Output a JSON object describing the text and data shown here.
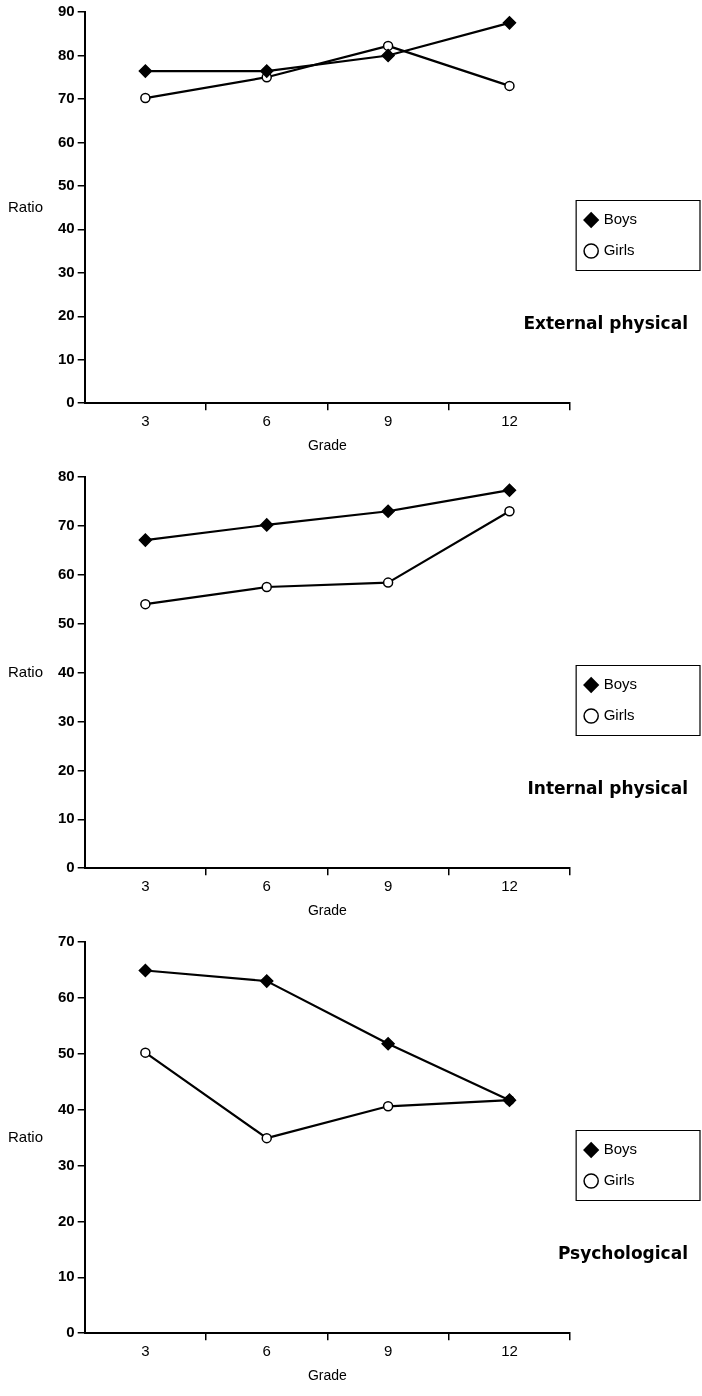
{
  "chart_data": [
    {
      "type": "line",
      "xlabel": "Grade",
      "ylabel": "Ratio",
      "x": [
        3,
        6,
        9,
        12
      ],
      "xlim": [
        1.5,
        13.5
      ],
      "xticks": [
        3,
        {
          "value": 4.5,
          "label": null
        },
        6,
        {
          "value": 7.5,
          "label": null
        },
        9,
        {
          "value": 10.5,
          "label": null
        },
        12,
        {
          "value": 13.5,
          "label": null
        }
      ],
      "ylim": [
        0,
        90
      ],
      "yticks": [
        0,
        10,
        20,
        30,
        40,
        50,
        60,
        70,
        80,
        90
      ],
      "grid": false,
      "legend": "right",
      "annotations": [
        "External physical"
      ],
      "series": [
        {
          "name": "Boys",
          "color": "#000000",
          "marker": "diamond",
          "values": [
            76.4,
            76.4,
            80,
            87.5
          ]
        },
        {
          "name": "Girls",
          "color": "#000000",
          "marker": "circle",
          "values": [
            70.2,
            75,
            82.2,
            73
          ]
        }
      ]
    },
    {
      "type": "line",
      "xlabel": "Grade",
      "ylabel": "Ratio",
      "x": [
        3,
        6,
        9,
        12
      ],
      "xlim": [
        1.5,
        13.5
      ],
      "xticks": [
        3,
        {
          "value": 4.5,
          "label": null
        },
        6,
        {
          "value": 7.5,
          "label": null
        },
        9,
        {
          "value": 10.5,
          "label": null
        },
        12,
        {
          "value": 13.5,
          "label": null
        }
      ],
      "ylim": [
        0,
        80
      ],
      "yticks": [
        0,
        10,
        20,
        30,
        40,
        50,
        60,
        70,
        80
      ],
      "grid": false,
      "legend": "right",
      "annotations": [
        "Internal physical"
      ],
      "series": [
        {
          "name": "Boys",
          "color": "#000000",
          "marker": "diamond",
          "values": [
            67.1,
            70.2,
            73,
            77.3
          ]
        },
        {
          "name": "Girls",
          "color": "#000000",
          "marker": "circle",
          "values": [
            54,
            57.5,
            58.4,
            73
          ]
        }
      ]
    },
    {
      "type": "line",
      "xlabel": "Grade",
      "ylabel": "Ratio",
      "x": [
        3,
        6,
        9,
        12
      ],
      "xlim": [
        1.5,
        13.5
      ],
      "xticks": [
        3,
        {
          "value": 4.5,
          "label": null
        },
        6,
        {
          "value": 7.5,
          "label": null
        },
        9,
        {
          "value": 10.5,
          "label": null
        },
        12,
        {
          "value": 13.5,
          "label": null
        }
      ],
      "ylim": [
        0,
        70
      ],
      "yticks": [
        0,
        10,
        20,
        30,
        40,
        50,
        60,
        70
      ],
      "grid": false,
      "legend": "right",
      "annotations": [
        "Psychological"
      ],
      "series": [
        {
          "name": "Boys",
          "color": "#000000",
          "marker": "diamond",
          "values": [
            64.9,
            63,
            51.8,
            41.7
          ]
        },
        {
          "name": "Girls",
          "color": "#000000",
          "marker": "circle",
          "values": [
            50.2,
            34.9,
            40.6,
            41.7
          ]
        }
      ]
    }
  ]
}
